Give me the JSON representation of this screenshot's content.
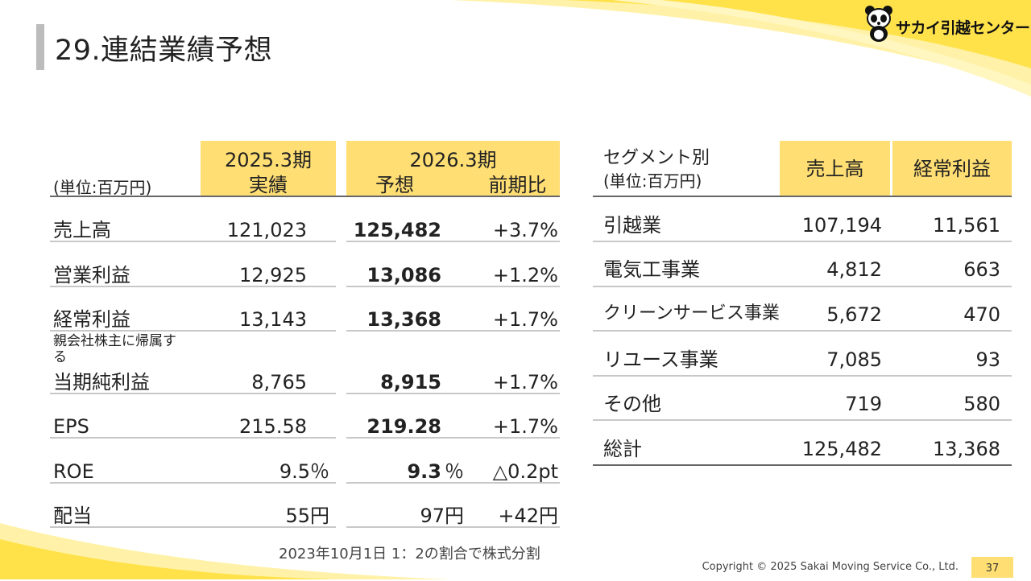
{
  "header": {
    "title": "29.連結業績予想",
    "logo_text": "サカイ引越センター"
  },
  "colors": {
    "accent": "#ffde73",
    "swoosh": "#ffe24a",
    "title_bar": "#bcbcbc"
  },
  "left_table": {
    "unit": "(単位:百万円)",
    "col_2025_title": "2025.3期",
    "col_2025_sub": "実績",
    "col_2026_title": "2026.3期",
    "col_2026_sub_forecast": "予想",
    "col_2026_sub_yoy": "前期比",
    "rows": [
      {
        "label": "売上高",
        "actual": "121,023",
        "forecast": "125,482",
        "yoy": "+3.7%"
      },
      {
        "label": "営業利益",
        "actual": "12,925",
        "forecast": "13,086",
        "yoy": "+1.2%"
      },
      {
        "label": "経常利益",
        "actual": "13,143",
        "forecast": "13,368",
        "yoy": "+1.7%"
      },
      {
        "label_small": "親会社株主に帰属す\nる",
        "label": "当期純利益",
        "actual": "8,765",
        "forecast": "8,915",
        "yoy": "+1.7%"
      },
      {
        "label": "EPS",
        "actual": "215.58",
        "forecast": "219.28",
        "yoy": "+1.7%"
      },
      {
        "label": "ROE",
        "actual": "9.5％",
        "forecast_num": "9.3",
        "forecast_unit": "％",
        "yoy": "△0.2pt"
      },
      {
        "label": "配当",
        "actual": "55円",
        "forecast": "97円",
        "yoy": "+42円"
      }
    ],
    "note": "2023年10月1日 1：2の割合で株式分割"
  },
  "right_table": {
    "title": "セグメント別",
    "unit": "(単位:百万円)",
    "col_sales": "売上高",
    "col_profit": "経常利益",
    "rows": [
      {
        "label": "引越業",
        "sales": "107,194",
        "profit": "11,561"
      },
      {
        "label": "電気工事業",
        "sales": "4,812",
        "profit": "663"
      },
      {
        "label": "クリーンサービス事業",
        "sales": "5,672",
        "profit": "470"
      },
      {
        "label": "リユース事業",
        "sales": "7,085",
        "profit": "93"
      },
      {
        "label": "その他",
        "sales": "719",
        "profit": "580"
      },
      {
        "label": "総計",
        "sales": "125,482",
        "profit": "13,368"
      }
    ]
  },
  "footer": {
    "copyright": "Copyright © 2025 Sakai Moving Service Co., Ltd.",
    "page_number": "37"
  }
}
